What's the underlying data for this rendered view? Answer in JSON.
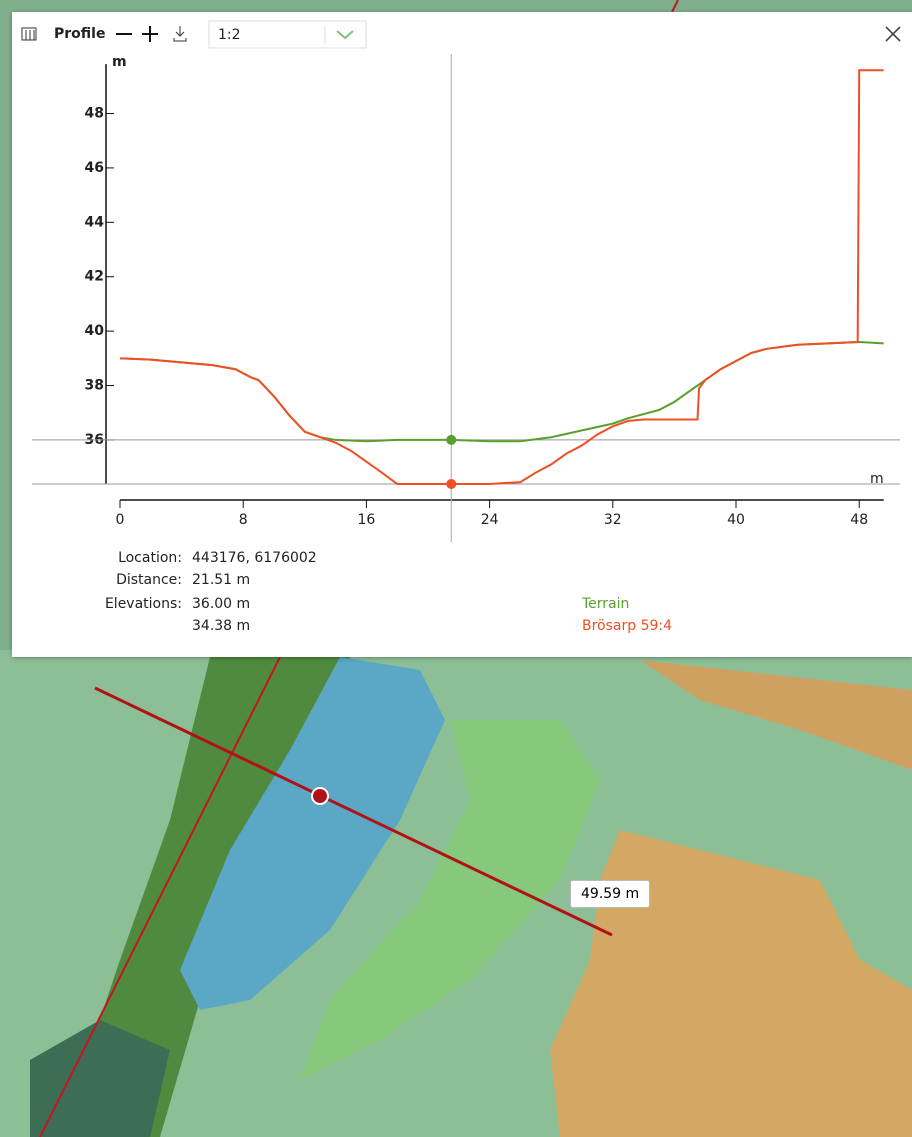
{
  "toolbar": {
    "title": "Profile",
    "scale": "1:2"
  },
  "chart_data": {
    "type": "line",
    "ylabel": "m",
    "xlabel": "m",
    "xlim": [
      0,
      49.59
    ],
    "ylim": [
      34.38,
      50
    ],
    "xticks": [
      0,
      8,
      16,
      24,
      32,
      40,
      48
    ],
    "yticks": [
      36,
      38,
      40,
      42,
      44,
      46,
      48
    ],
    "cursor_x": 21.51,
    "cursor_values": [
      36.0,
      34.38
    ],
    "series": [
      {
        "name": "Terrain",
        "color": "#5a9e2f",
        "x": [
          0,
          2,
          4,
          6,
          7.5,
          8.5,
          9,
          10,
          11,
          12,
          13,
          14,
          16,
          18,
          20,
          21.51,
          24,
          26,
          28,
          30,
          32,
          33,
          35,
          36,
          37,
          38,
          39,
          40,
          41,
          42,
          44,
          46,
          48,
          49.59
        ],
        "values": [
          39.0,
          38.95,
          38.85,
          38.75,
          38.6,
          38.3,
          38.2,
          37.6,
          36.9,
          36.3,
          36.1,
          36.0,
          35.95,
          36.0,
          36.0,
          36.0,
          35.95,
          35.95,
          36.1,
          36.35,
          36.6,
          36.8,
          37.1,
          37.4,
          37.8,
          38.2,
          38.6,
          38.9,
          39.2,
          39.35,
          39.5,
          39.55,
          39.6,
          39.55
        ]
      },
      {
        "name": "Brösarp 59:4",
        "color": "#f04e23",
        "x": [
          0,
          2,
          4,
          6,
          7.5,
          8.5,
          9,
          10,
          11,
          12,
          13,
          14,
          15,
          16,
          17,
          18,
          20,
          21.51,
          24,
          26,
          27,
          28,
          29,
          30,
          31,
          32,
          33,
          34,
          37.5,
          37.6,
          38,
          39,
          40,
          41,
          42,
          44,
          46,
          47.9,
          48,
          49.59
        ],
        "values": [
          39.0,
          38.95,
          38.85,
          38.75,
          38.6,
          38.3,
          38.2,
          37.6,
          36.9,
          36.3,
          36.1,
          35.9,
          35.6,
          35.2,
          34.8,
          34.38,
          34.38,
          34.38,
          34.38,
          34.45,
          34.8,
          35.1,
          35.5,
          35.8,
          36.2,
          36.5,
          36.7,
          36.75,
          36.75,
          37.9,
          38.2,
          38.6,
          38.9,
          39.2,
          39.35,
          39.5,
          39.55,
          39.6,
          49.59,
          49.59
        ]
      }
    ]
  },
  "readout": {
    "location_label": "Location:",
    "location": "443176, 6176002",
    "distance_label": "Distance:",
    "distance": "21.51 m",
    "elevations_label": "Elevations:",
    "elevations": [
      "36.00 m",
      "34.38 m"
    ]
  },
  "map": {
    "length_label": "49.59 m"
  }
}
